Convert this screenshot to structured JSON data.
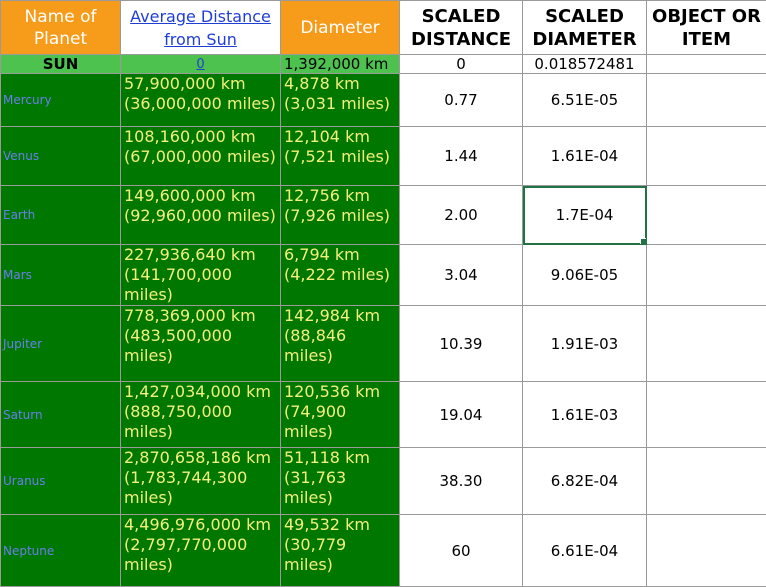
{
  "headers": {
    "name": "Name of Planet",
    "avg_distance": "Average Distance from Sun",
    "diameter": "Diameter",
    "scaled_distance": "SCALED DISTANCE",
    "scaled_diameter": "SCALED DIAMETER",
    "object_item": "OBJECT OR ITEM"
  },
  "sun": {
    "name": "SUN",
    "distance": "0",
    "diameter": "1,392,000 km",
    "scaled_distance": "0",
    "scaled_diameter": "0.018572481",
    "object": ""
  },
  "planets": [
    {
      "name": "Mercury",
      "distance": "57,900,000 km (36,000,000 miles)",
      "diameter": "4,878 km (3,031 miles)",
      "scaled_distance": "0.77",
      "scaled_diameter": "6.51E-05",
      "object": ""
    },
    {
      "name": "Venus",
      "distance": "108,160,000 km (67,000,000 miles)",
      "diameter": "12,104 km (7,521 miles)",
      "scaled_distance": "1.44",
      "scaled_diameter": "1.61E-04",
      "object": ""
    },
    {
      "name": "Earth",
      "distance": "149,600,000 km (92,960,000 miles)",
      "diameter": "12,756 km (7,926 miles)",
      "scaled_distance": "2.00",
      "scaled_diameter": "1.7E-04",
      "object": ""
    },
    {
      "name": "Mars",
      "distance": "227,936,640 km (141,700,000 miles)",
      "diameter": "6,794 km (4,222 miles)",
      "scaled_distance": "3.04",
      "scaled_diameter": "9.06E-05",
      "object": ""
    },
    {
      "name": "Jupiter",
      "distance": "778,369,000 km (483,500,000 miles)",
      "diameter": "142,984 km (88,846 miles)",
      "scaled_distance": "10.39",
      "scaled_diameter": "1.91E-03",
      "object": ""
    },
    {
      "name": "Saturn",
      "distance": "1,427,034,000 km (888,750,000 miles)",
      "diameter": "120,536 km (74,900 miles)",
      "scaled_distance": "19.04",
      "scaled_diameter": "1.61E-03",
      "object": ""
    },
    {
      "name": "Uranus",
      "distance": "2,870,658,186 km (1,783,744,300 miles)",
      "diameter": "51,118 km (31,763 miles)",
      "scaled_distance": "38.30",
      "scaled_diameter": "6.82E-04",
      "object": ""
    },
    {
      "name": "Neptune",
      "distance": "4,496,976,000 km (2,797,770,000 miles)",
      "diameter": "49,532 km (30,779 miles)",
      "scaled_distance": "60",
      "scaled_diameter": "6.61E-04",
      "object": ""
    }
  ]
}
